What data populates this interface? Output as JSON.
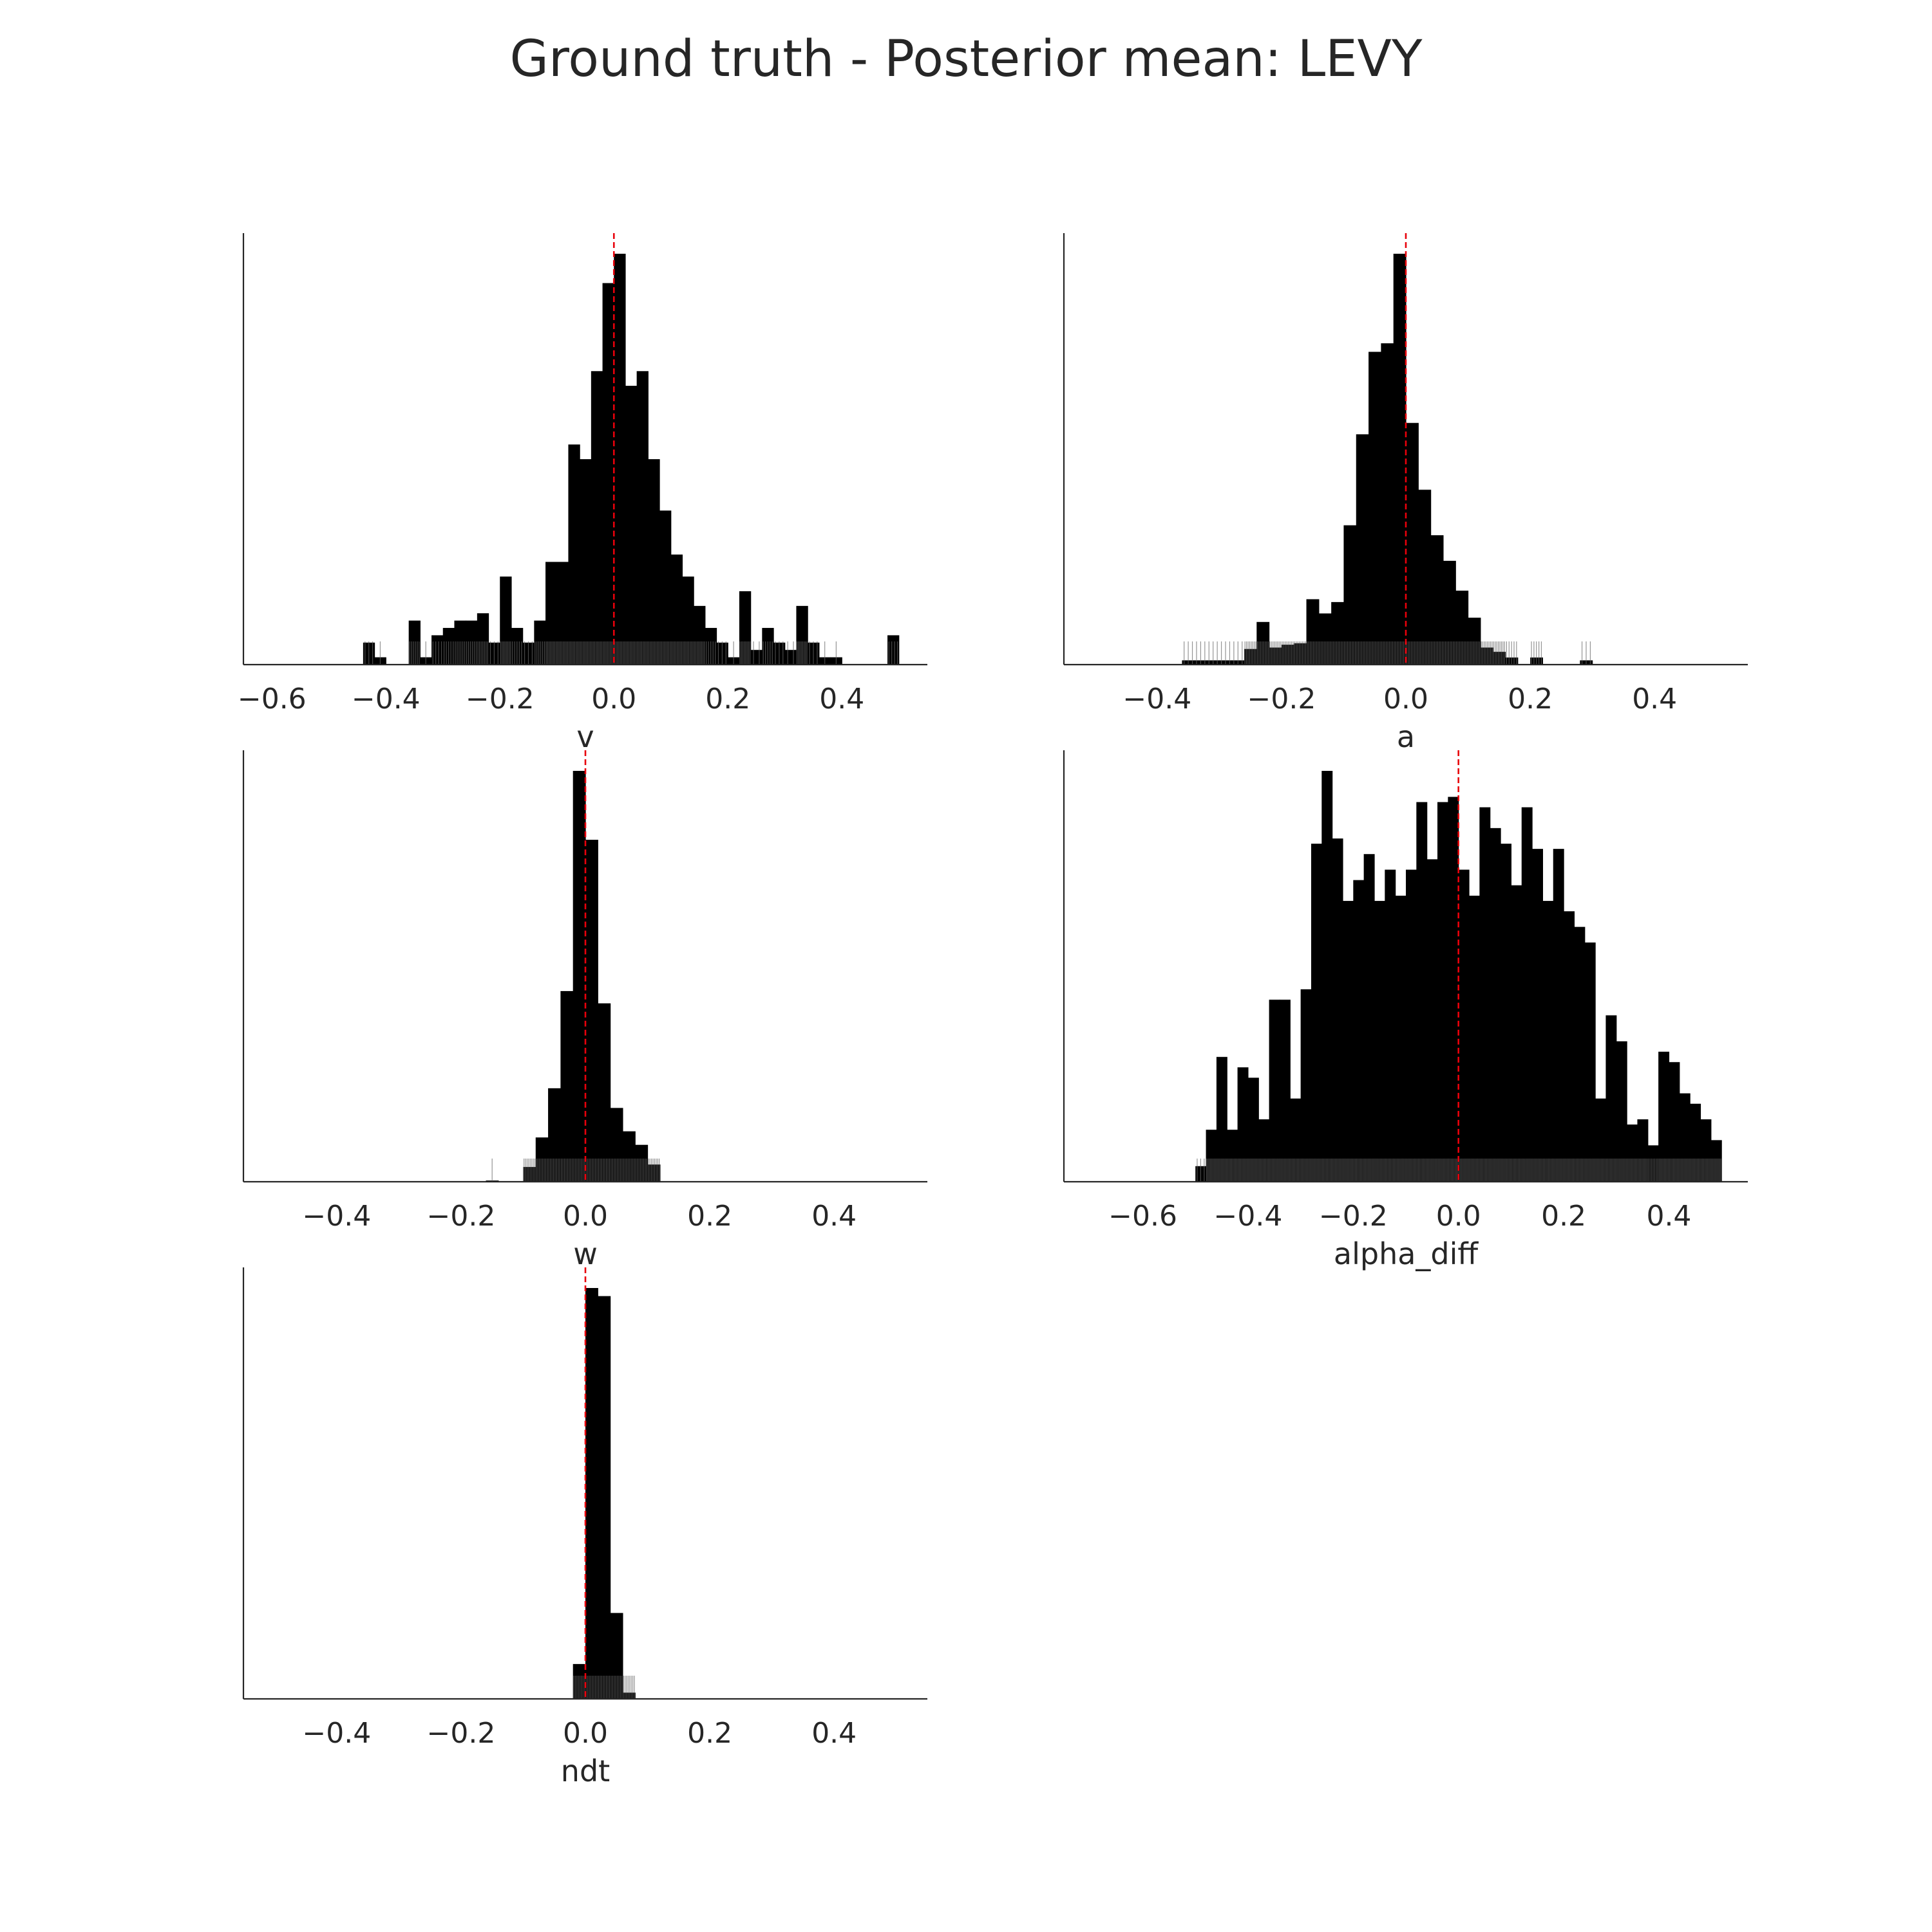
{
  "figure": {
    "title": "Ground truth - Posterior mean: LEVY",
    "bar_color": "#000000",
    "rug_color": "#666666",
    "refline_color": "#e8000b"
  },
  "chart_data": [
    {
      "type": "histogram",
      "xlabel": "v",
      "xlim": [
        -0.65,
        0.55
      ],
      "xticks": [
        -0.6,
        -0.4,
        -0.2,
        0.0,
        0.2,
        0.4
      ],
      "tick_labels": [
        "−0.6",
        "−0.4",
        "−0.2",
        "0.0",
        "0.2",
        "0.4"
      ],
      "reference_line": 0.0,
      "grid": false,
      "bins": [
        [
          -0.44,
          -0.42,
          3
        ],
        [
          -0.42,
          -0.4,
          1
        ],
        [
          -0.36,
          -0.34,
          6
        ],
        [
          -0.34,
          -0.32,
          1
        ],
        [
          -0.32,
          -0.3,
          4
        ],
        [
          -0.3,
          -0.28,
          5
        ],
        [
          -0.28,
          -0.26,
          6
        ],
        [
          -0.26,
          -0.24,
          6
        ],
        [
          -0.24,
          -0.22,
          7
        ],
        [
          -0.22,
          -0.2,
          3
        ],
        [
          -0.2,
          -0.18,
          12
        ],
        [
          -0.18,
          -0.16,
          5
        ],
        [
          -0.16,
          -0.14,
          3
        ],
        [
          -0.14,
          -0.12,
          6
        ],
        [
          -0.12,
          -0.1,
          14
        ],
        [
          -0.1,
          -0.08,
          14
        ],
        [
          -0.08,
          -0.06,
          30
        ],
        [
          -0.06,
          -0.04,
          28
        ],
        [
          -0.04,
          -0.02,
          40
        ],
        [
          -0.02,
          0.0,
          52
        ],
        [
          0.0,
          0.02,
          56
        ],
        [
          0.02,
          0.04,
          38
        ],
        [
          0.04,
          0.06,
          40
        ],
        [
          0.06,
          0.08,
          28
        ],
        [
          0.08,
          0.1,
          21
        ],
        [
          0.1,
          0.12,
          15
        ],
        [
          0.12,
          0.14,
          12
        ],
        [
          0.14,
          0.16,
          8
        ],
        [
          0.16,
          0.18,
          5
        ],
        [
          0.18,
          0.2,
          3
        ],
        [
          0.2,
          0.22,
          1
        ],
        [
          0.22,
          0.24,
          10
        ],
        [
          0.24,
          0.26,
          2
        ],
        [
          0.26,
          0.28,
          5
        ],
        [
          0.28,
          0.3,
          3
        ],
        [
          0.3,
          0.32,
          2
        ],
        [
          0.32,
          0.34,
          8
        ],
        [
          0.34,
          0.36,
          3
        ],
        [
          0.36,
          0.38,
          1
        ],
        [
          0.38,
          0.4,
          1
        ],
        [
          0.48,
          0.5,
          4
        ]
      ]
    },
    {
      "type": "histogram",
      "xlabel": "a",
      "xlim": [
        -0.55,
        0.55
      ],
      "xticks": [
        -0.4,
        -0.2,
        0.0,
        0.2,
        0.4
      ],
      "tick_labels": [
        "−0.4",
        "−0.2",
        "0.0",
        "0.2",
        "0.4"
      ],
      "reference_line": 0.0,
      "grid": false,
      "bins": [
        [
          -0.36,
          -0.34,
          3
        ],
        [
          -0.34,
          -0.32,
          3
        ],
        [
          -0.32,
          -0.3,
          3
        ],
        [
          -0.3,
          -0.28,
          3
        ],
        [
          -0.28,
          -0.26,
          3
        ],
        [
          -0.26,
          -0.24,
          11
        ],
        [
          -0.24,
          -0.22,
          30
        ],
        [
          -0.22,
          -0.2,
          12
        ],
        [
          -0.2,
          -0.18,
          14
        ],
        [
          -0.18,
          -0.16,
          15
        ],
        [
          -0.16,
          -0.14,
          46
        ],
        [
          -0.14,
          -0.12,
          36
        ],
        [
          -0.12,
          -0.1,
          44
        ],
        [
          -0.1,
          -0.08,
          98
        ],
        [
          -0.08,
          -0.06,
          162
        ],
        [
          -0.06,
          -0.04,
          220
        ],
        [
          -0.04,
          -0.02,
          226
        ],
        [
          -0.02,
          0.0,
          289
        ],
        [
          0.0,
          0.02,
          170
        ],
        [
          0.02,
          0.04,
          123
        ],
        [
          0.04,
          0.06,
          91
        ],
        [
          0.06,
          0.08,
          73
        ],
        [
          0.08,
          0.1,
          52
        ],
        [
          0.1,
          0.12,
          33
        ],
        [
          0.12,
          0.14,
          12
        ],
        [
          0.14,
          0.16,
          9
        ],
        [
          0.16,
          0.18,
          5
        ],
        [
          0.2,
          0.22,
          5
        ],
        [
          0.28,
          0.3,
          3
        ]
      ]
    },
    {
      "type": "histogram",
      "xlabel": "w",
      "xlim": [
        -0.55,
        0.55
      ],
      "xticks": [
        -0.4,
        -0.2,
        0.0,
        0.2,
        0.4
      ],
      "tick_labels": [
        "−0.4",
        "−0.2",
        "0.0",
        "0.2",
        "0.4"
      ],
      "reference_line": 0.0,
      "grid": false,
      "bins": [
        [
          -0.16,
          -0.14,
          1
        ],
        [
          -0.1,
          -0.08,
          12
        ],
        [
          -0.08,
          -0.06,
          36
        ],
        [
          -0.06,
          -0.04,
          76
        ],
        [
          -0.04,
          -0.02,
          155
        ],
        [
          -0.02,
          0.0,
          334
        ],
        [
          0.0,
          0.02,
          278
        ],
        [
          0.02,
          0.04,
          145
        ],
        [
          0.04,
          0.06,
          60
        ],
        [
          0.06,
          0.08,
          41
        ],
        [
          0.08,
          0.1,
          30
        ],
        [
          0.1,
          0.12,
          14
        ]
      ]
    },
    {
      "type": "histogram",
      "xlabel": "alpha_diff",
      "xlim": [
        -0.75,
        0.55
      ],
      "xticks": [
        -0.6,
        -0.4,
        -0.2,
        0.0,
        0.2,
        0.4
      ],
      "tick_labels": [
        "−0.6",
        "−0.4",
        "−0.2",
        "0.0",
        "0.2",
        "0.4"
      ],
      "reference_line": 0.0,
      "grid": false,
      "bins": [
        [
          -0.5,
          -0.48,
          3
        ],
        [
          -0.48,
          -0.46,
          10
        ],
        [
          -0.46,
          -0.44,
          24
        ],
        [
          -0.44,
          -0.42,
          10
        ],
        [
          -0.42,
          -0.4,
          22
        ],
        [
          -0.4,
          -0.38,
          20
        ],
        [
          -0.38,
          -0.36,
          12
        ],
        [
          -0.36,
          -0.34,
          35
        ],
        [
          -0.34,
          -0.32,
          35
        ],
        [
          -0.32,
          -0.3,
          16
        ],
        [
          -0.3,
          -0.28,
          37
        ],
        [
          -0.28,
          -0.26,
          65
        ],
        [
          -0.26,
          -0.24,
          79
        ],
        [
          -0.24,
          -0.22,
          66
        ],
        [
          -0.22,
          -0.2,
          54
        ],
        [
          -0.2,
          -0.18,
          58
        ],
        [
          -0.18,
          -0.16,
          63
        ],
        [
          -0.16,
          -0.14,
          54
        ],
        [
          -0.14,
          -0.12,
          60
        ],
        [
          -0.12,
          -0.1,
          55
        ],
        [
          -0.1,
          -0.08,
          60
        ],
        [
          -0.08,
          -0.06,
          73
        ],
        [
          -0.06,
          -0.04,
          62
        ],
        [
          -0.04,
          -0.02,
          73
        ],
        [
          -0.02,
          0.0,
          74
        ],
        [
          0.0,
          0.02,
          60
        ],
        [
          0.02,
          0.04,
          55
        ],
        [
          0.04,
          0.06,
          72
        ],
        [
          0.06,
          0.08,
          68
        ],
        [
          0.08,
          0.1,
          65
        ],
        [
          0.1,
          0.12,
          57
        ],
        [
          0.12,
          0.14,
          72
        ],
        [
          0.14,
          0.16,
          64
        ],
        [
          0.16,
          0.18,
          54
        ],
        [
          0.18,
          0.2,
          64
        ],
        [
          0.2,
          0.22,
          52
        ],
        [
          0.22,
          0.24,
          49
        ],
        [
          0.24,
          0.26,
          46
        ],
        [
          0.26,
          0.28,
          16
        ],
        [
          0.28,
          0.3,
          32
        ],
        [
          0.3,
          0.32,
          27
        ],
        [
          0.32,
          0.34,
          11
        ],
        [
          0.34,
          0.36,
          12
        ],
        [
          0.36,
          0.38,
          7
        ],
        [
          0.38,
          0.4,
          25
        ],
        [
          0.4,
          0.42,
          23
        ],
        [
          0.42,
          0.44,
          17
        ],
        [
          0.44,
          0.46,
          15
        ],
        [
          0.46,
          0.48,
          12
        ],
        [
          0.48,
          0.5,
          8
        ]
      ]
    },
    {
      "type": "histogram",
      "xlabel": "ndt",
      "xlim": [
        -0.55,
        0.55
      ],
      "xticks": [
        -0.4,
        -0.2,
        0.0,
        0.2,
        0.4
      ],
      "tick_labels": [
        "−0.4",
        "−0.2",
        "0.0",
        "0.2",
        "0.4"
      ],
      "reference_line": 0.0,
      "grid": false,
      "bins": [
        [
          -0.02,
          0.0,
          56
        ],
        [
          0.0,
          0.02,
          660
        ],
        [
          0.02,
          0.04,
          647
        ],
        [
          0.04,
          0.06,
          138
        ],
        [
          0.06,
          0.08,
          10
        ]
      ]
    }
  ]
}
